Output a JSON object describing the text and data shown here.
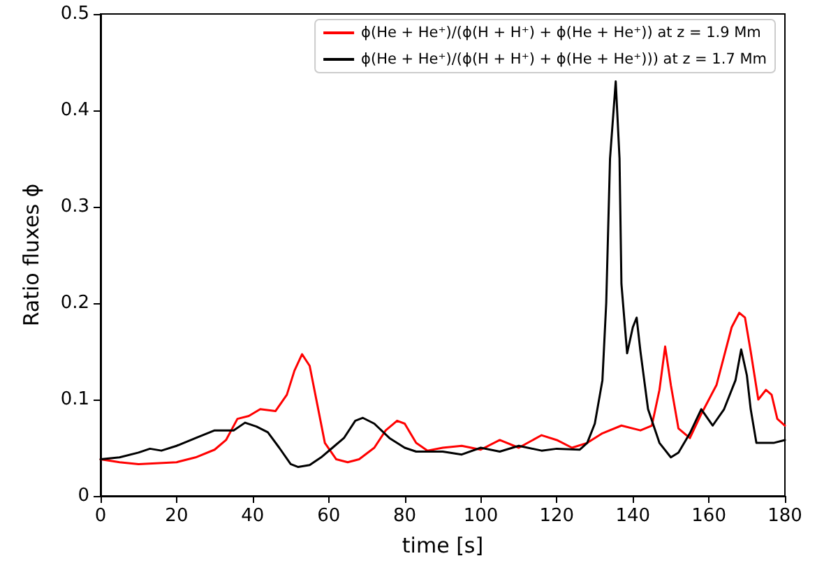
{
  "chart_data": {
    "type": "line",
    "xlabel": "time [s]",
    "ylabel": "Ratio fluxes ϕ",
    "xlim": [
      0,
      180
    ],
    "ylim": [
      0,
      0.5
    ],
    "xticks": [
      0,
      20,
      40,
      60,
      80,
      100,
      120,
      140,
      160,
      180
    ],
    "yticks": [
      0,
      0.1,
      0.2,
      0.3,
      0.4,
      0.5
    ],
    "grid": false,
    "legend": "top right",
    "marker": "none",
    "line_style": "solid",
    "series": [
      {
        "name": "ϕ(He + He⁺)/(ϕ(H + H⁺) + ϕ(He + He⁺)) at z = 1.9 Mm",
        "color": "#ff0000",
        "x": [
          0,
          5,
          10,
          20,
          25,
          30,
          33,
          36,
          39,
          42,
          46,
          49,
          51,
          53,
          55,
          57,
          59,
          62,
          65,
          68,
          72,
          75,
          78,
          80,
          83,
          86,
          90,
          95,
          100,
          105,
          110,
          116,
          120,
          124,
          128,
          132,
          137,
          142,
          145,
          147,
          148.5,
          150,
          152,
          155,
          158,
          162,
          166,
          168,
          169.5,
          171,
          173,
          175,
          176.5,
          178,
          180
        ],
        "values": [
          0.038,
          0.035,
          0.033,
          0.035,
          0.04,
          0.048,
          0.058,
          0.08,
          0.083,
          0.09,
          0.088,
          0.105,
          0.13,
          0.147,
          0.135,
          0.095,
          0.055,
          0.038,
          0.035,
          0.038,
          0.05,
          0.068,
          0.078,
          0.075,
          0.055,
          0.047,
          0.05,
          0.052,
          0.048,
          0.058,
          0.05,
          0.063,
          0.058,
          0.05,
          0.055,
          0.065,
          0.073,
          0.068,
          0.073,
          0.11,
          0.155,
          0.115,
          0.07,
          0.06,
          0.085,
          0.115,
          0.175,
          0.19,
          0.185,
          0.15,
          0.1,
          0.11,
          0.105,
          0.08,
          0.073
        ]
      },
      {
        "name": "ϕ(He + He⁺)/(ϕ(H + H⁺) + ϕ(He + He⁺))) at z = 1.7 Mm",
        "color": "#000000",
        "x": [
          0,
          5,
          10,
          13,
          16,
          20,
          25,
          30,
          35,
          38,
          41,
          44,
          47,
          50,
          52,
          55,
          58,
          61,
          64,
          67,
          69,
          72,
          76,
          80,
          83,
          90,
          95,
          100,
          105,
          110,
          116,
          120,
          126,
          128,
          130,
          132,
          133,
          134,
          135.5,
          136.5,
          137,
          138.5,
          140,
          141,
          142,
          144,
          147,
          150,
          152,
          155,
          158,
          161,
          164,
          167,
          168.5,
          170,
          171,
          172.5,
          175,
          177,
          180
        ],
        "values": [
          0.038,
          0.04,
          0.045,
          0.049,
          0.047,
          0.052,
          0.06,
          0.068,
          0.068,
          0.076,
          0.072,
          0.066,
          0.05,
          0.033,
          0.03,
          0.032,
          0.04,
          0.05,
          0.06,
          0.078,
          0.081,
          0.075,
          0.06,
          0.05,
          0.046,
          0.046,
          0.043,
          0.05,
          0.046,
          0.052,
          0.047,
          0.049,
          0.048,
          0.055,
          0.075,
          0.12,
          0.2,
          0.35,
          0.43,
          0.35,
          0.22,
          0.148,
          0.175,
          0.185,
          0.15,
          0.09,
          0.055,
          0.04,
          0.045,
          0.065,
          0.09,
          0.073,
          0.09,
          0.12,
          0.152,
          0.125,
          0.09,
          0.055,
          0.055,
          0.055,
          0.058
        ]
      }
    ]
  }
}
